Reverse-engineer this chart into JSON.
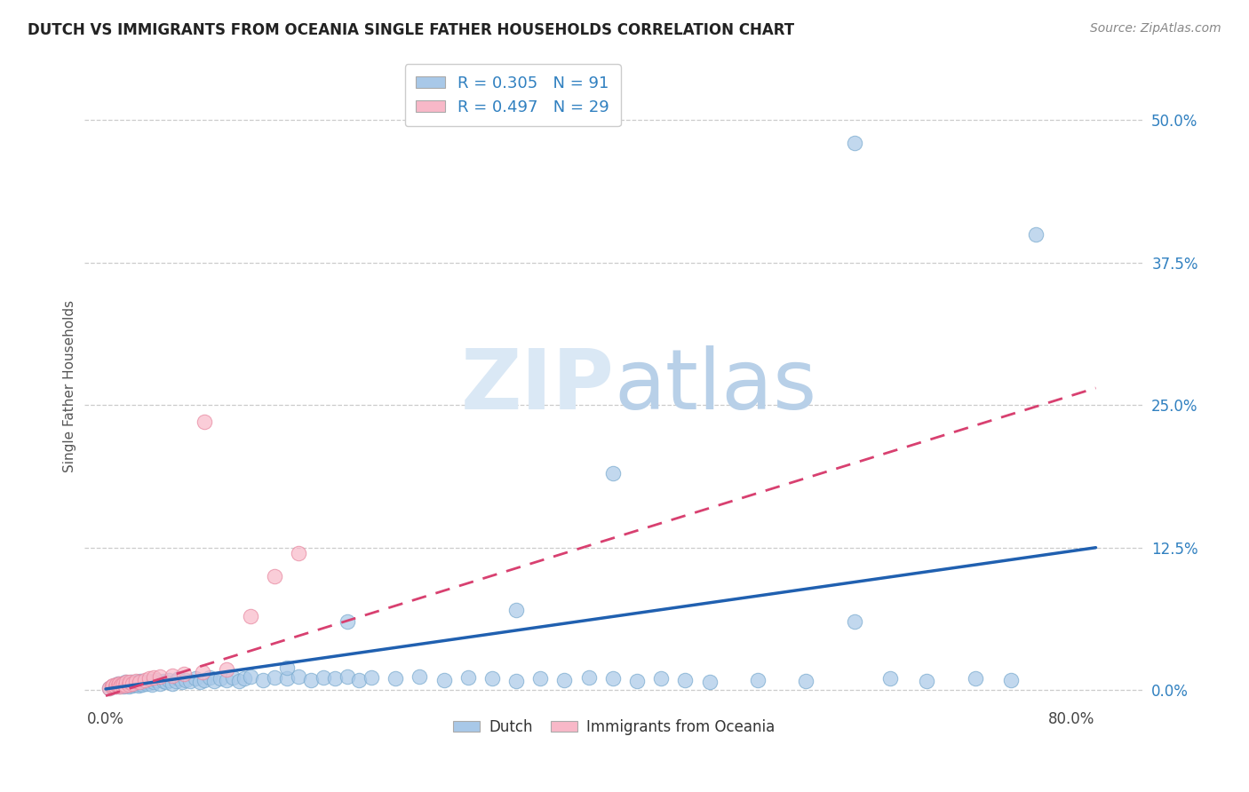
{
  "title": "DUTCH VS IMMIGRANTS FROM OCEANIA SINGLE FATHER HOUSEHOLDS CORRELATION CHART",
  "source": "Source: ZipAtlas.com",
  "ylabel": "Single Father Households",
  "ytick_labels": [
    "0.0%",
    "12.5%",
    "25.0%",
    "37.5%",
    "50.0%"
  ],
  "ytick_values": [
    0.0,
    0.125,
    0.25,
    0.375,
    0.5
  ],
  "xlim": [
    -0.018,
    0.86
  ],
  "ylim": [
    -0.012,
    0.545
  ],
  "legend_label1": "Dutch",
  "legend_label2": "Immigrants from Oceania",
  "R_dutch": 0.305,
  "N_dutch": 91,
  "R_oceania": 0.497,
  "N_oceania": 29,
  "dutch_color": "#a8c8e8",
  "dutch_edge_color": "#7aabcf",
  "dutch_line_color": "#2060b0",
  "oceania_color": "#f8b8c8",
  "oceania_edge_color": "#e888a0",
  "oceania_line_color": "#d84070",
  "background_color": "#ffffff",
  "grid_color": "#cccccc",
  "title_fontsize": 12,
  "axis_label_fontsize": 11,
  "tick_fontsize": 12,
  "source_fontsize": 10,
  "watermark_color": "#dae8f5",
  "tick_color": "#3080c0",
  "dutch_x": [
    0.003,
    0.005,
    0.007,
    0.008,
    0.009,
    0.01,
    0.01,
    0.011,
    0.012,
    0.013,
    0.014,
    0.015,
    0.016,
    0.016,
    0.017,
    0.018,
    0.019,
    0.02,
    0.021,
    0.022,
    0.023,
    0.025,
    0.026,
    0.027,
    0.028,
    0.029,
    0.03,
    0.032,
    0.034,
    0.036,
    0.038,
    0.04,
    0.042,
    0.045,
    0.048,
    0.05,
    0.052,
    0.055,
    0.058,
    0.06,
    0.063,
    0.066,
    0.07,
    0.074,
    0.078,
    0.082,
    0.086,
    0.09,
    0.095,
    0.1,
    0.105,
    0.11,
    0.115,
    0.12,
    0.13,
    0.14,
    0.15,
    0.16,
    0.17,
    0.18,
    0.19,
    0.2,
    0.21,
    0.22,
    0.24,
    0.26,
    0.28,
    0.3,
    0.32,
    0.34,
    0.36,
    0.38,
    0.4,
    0.42,
    0.44,
    0.46,
    0.48,
    0.5,
    0.54,
    0.58,
    0.62,
    0.65,
    0.68,
    0.72,
    0.75,
    0.62,
    0.77,
    0.42,
    0.34,
    0.2,
    0.15
  ],
  "dutch_y": [
    0.002,
    0.003,
    0.004,
    0.003,
    0.005,
    0.004,
    0.006,
    0.003,
    0.005,
    0.004,
    0.006,
    0.003,
    0.005,
    0.007,
    0.004,
    0.006,
    0.003,
    0.005,
    0.007,
    0.004,
    0.006,
    0.005,
    0.007,
    0.004,
    0.006,
    0.008,
    0.005,
    0.007,
    0.006,
    0.008,
    0.005,
    0.007,
    0.009,
    0.006,
    0.008,
    0.007,
    0.009,
    0.006,
    0.008,
    0.01,
    0.007,
    0.009,
    0.008,
    0.01,
    0.007,
    0.009,
    0.011,
    0.008,
    0.01,
    0.009,
    0.011,
    0.008,
    0.01,
    0.012,
    0.009,
    0.011,
    0.01,
    0.012,
    0.009,
    0.011,
    0.01,
    0.012,
    0.009,
    0.011,
    0.01,
    0.012,
    0.009,
    0.011,
    0.01,
    0.008,
    0.01,
    0.009,
    0.011,
    0.01,
    0.008,
    0.01,
    0.009,
    0.007,
    0.009,
    0.008,
    0.06,
    0.01,
    0.008,
    0.01,
    0.009,
    0.48,
    0.4,
    0.19,
    0.07,
    0.06,
    0.02
  ],
  "oceania_x": [
    0.003,
    0.005,
    0.006,
    0.008,
    0.009,
    0.01,
    0.011,
    0.012,
    0.013,
    0.015,
    0.016,
    0.017,
    0.019,
    0.02,
    0.022,
    0.025,
    0.028,
    0.032,
    0.036,
    0.04,
    0.045,
    0.055,
    0.065,
    0.08,
    0.1,
    0.12,
    0.14,
    0.16,
    0.082
  ],
  "oceania_y": [
    0.002,
    0.003,
    0.004,
    0.003,
    0.005,
    0.004,
    0.006,
    0.003,
    0.005,
    0.006,
    0.004,
    0.007,
    0.005,
    0.007,
    0.006,
    0.008,
    0.007,
    0.009,
    0.01,
    0.011,
    0.012,
    0.013,
    0.014,
    0.016,
    0.018,
    0.065,
    0.1,
    0.12,
    0.235
  ]
}
